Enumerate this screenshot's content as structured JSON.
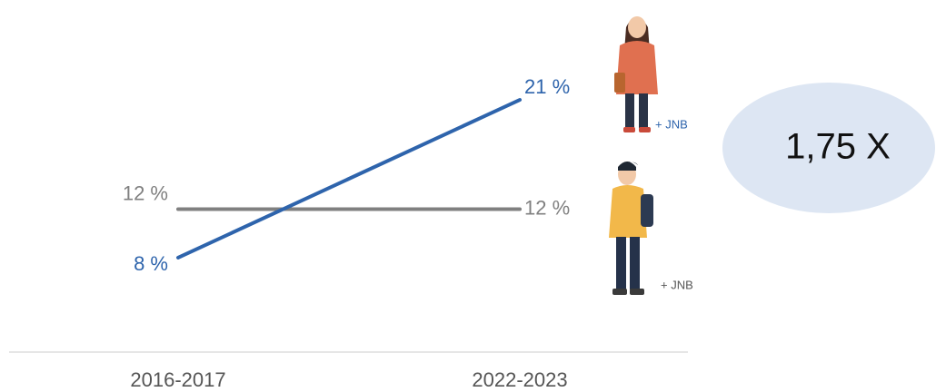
{
  "chart_data": {
    "type": "line",
    "categories": [
      "2016-2017",
      "2022-2023"
    ],
    "series": [
      {
        "color": "#808080",
        "values": [
          12,
          12
        ],
        "value_labels": [
          "12 %",
          "12 %"
        ]
      },
      {
        "color": "#2e64ac",
        "values": [
          8,
          21
        ],
        "value_labels": [
          "8 %",
          "21 %"
        ]
      }
    ],
    "ylim": [
      0,
      25
    ],
    "annotations": [
      "+ JNB",
      "+ JNB",
      "1,75 X"
    ]
  }
}
